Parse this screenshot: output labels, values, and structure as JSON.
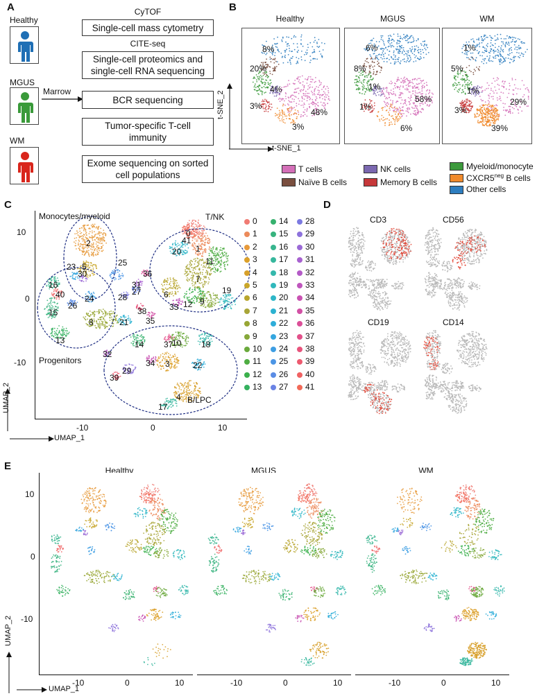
{
  "panels": {
    "A": "A",
    "B": "B",
    "C": "C",
    "D": "D",
    "E": "E"
  },
  "panelA": {
    "groups": [
      "Healthy",
      "MGUS",
      "WM"
    ],
    "arrow_label": "Marrow",
    "headers": [
      "CyTOF",
      "CITE-seq"
    ],
    "boxes": [
      [
        "Single-cell mass cytometry"
      ],
      [
        "Single-cell proteomics and",
        "single-cell RNA sequencing"
      ],
      [
        "BCR sequencing"
      ],
      [
        "Tumor-specific T-cell",
        "immunity"
      ],
      [
        "Exome sequencing on sorted",
        "cell populations"
      ]
    ],
    "person_colors": [
      "#1f6fb5",
      "#3a9a3a",
      "#d9261c"
    ]
  },
  "panelB": {
    "titles": [
      "Healthy",
      "MGUS",
      "WM"
    ],
    "xlabel": "t-SNE_1",
    "ylabel": "t-SNE_2",
    "pct": [
      [
        "8%",
        "20%",
        "4%",
        "3%",
        "48%",
        "3%"
      ],
      [
        "6%",
        "8%",
        "1%",
        "1%",
        "58%",
        "6%"
      ],
      [
        "1%",
        "5%",
        "1%",
        "3%",
        "29%",
        "39%"
      ]
    ],
    "legend": [
      {
        "label": "T cells",
        "color": "#d46fb8"
      },
      {
        "label": "Naïve B cells",
        "color": "#7a4f3f"
      },
      {
        "label": "NK cells",
        "color": "#7b68b0"
      },
      {
        "label": "Memory B cells",
        "color": "#c6383a"
      },
      {
        "label": "Myeloid/monocyte",
        "color": "#3c9a3c"
      },
      {
        "label": "CXCR5",
        "label_sup": "neg",
        "label_tail": " B cells",
        "color": "#f08a2c"
      },
      {
        "label": "Other cells",
        "color": "#2d7dbf"
      }
    ]
  },
  "panelC": {
    "group_labels": [
      "Monocytes/myeloid",
      "T/NK",
      "Progenitors",
      "B/LPC"
    ],
    "xlabel": "UMAP_1",
    "ylabel": "UMAP_2",
    "xticks": [
      "-10",
      "0",
      "10"
    ],
    "yticks": [
      "10",
      "0",
      "-10"
    ],
    "cluster_numbers": [
      "0",
      "41",
      "1",
      "20",
      "11",
      "2",
      "5",
      "25",
      "23",
      "30",
      "36",
      "31",
      "27",
      "28",
      "7",
      "6",
      "12",
      "9",
      "19",
      "33",
      "16",
      "40",
      "26",
      "24",
      "15",
      "8",
      "21",
      "38",
      "35",
      "13",
      "14",
      "37",
      "10",
      "18",
      "32",
      "34",
      "3",
      "22",
      "29",
      "39",
      "4",
      "17"
    ]
  },
  "legendC": {
    "items": [
      {
        "n": "0",
        "c": "#f07b73"
      },
      {
        "n": "1",
        "c": "#ec8a5a"
      },
      {
        "n": "2",
        "c": "#e79a3c"
      },
      {
        "n": "3",
        "c": "#dba02a"
      },
      {
        "n": "4",
        "c": "#d7a02b"
      },
      {
        "n": "5",
        "c": "#c9a62b"
      },
      {
        "n": "6",
        "c": "#b8a52e"
      },
      {
        "n": "7",
        "c": "#a8a537"
      },
      {
        "n": "8",
        "c": "#98a634"
      },
      {
        "n": "9",
        "c": "#86a83a"
      },
      {
        "n": "10",
        "c": "#6aa93c"
      },
      {
        "n": "11",
        "c": "#4ead42"
      },
      {
        "n": "12",
        "c": "#3bb04c"
      },
      {
        "n": "13",
        "c": "#35b15f"
      },
      {
        "n": "14",
        "c": "#36b16e"
      },
      {
        "n": "15",
        "c": "#37b37e"
      },
      {
        "n": "16",
        "c": "#38b58e"
      },
      {
        "n": "17",
        "c": "#37b79d"
      },
      {
        "n": "18",
        "c": "#35b8ac"
      },
      {
        "n": "19",
        "c": "#31b8bc"
      },
      {
        "n": "20",
        "c": "#2eb6c8"
      },
      {
        "n": "21",
        "c": "#2cb2d1"
      },
      {
        "n": "22",
        "c": "#2eadd9"
      },
      {
        "n": "23",
        "c": "#35a6df"
      },
      {
        "n": "24",
        "c": "#3e9ee3"
      },
      {
        "n": "25",
        "c": "#4b95e5"
      },
      {
        "n": "26",
        "c": "#5a8ce5"
      },
      {
        "n": "27",
        "c": "#6a83e4"
      },
      {
        "n": "28",
        "c": "#7c7ae1"
      },
      {
        "n": "29",
        "c": "#8d72dc"
      },
      {
        "n": "30",
        "c": "#9b6ad6"
      },
      {
        "n": "31",
        "c": "#a862d0"
      },
      {
        "n": "32",
        "c": "#b45bc7"
      },
      {
        "n": "33",
        "c": "#bf56bd"
      },
      {
        "n": "34",
        "c": "#c952b2"
      },
      {
        "n": "35",
        "c": "#d250a5"
      },
      {
        "n": "36",
        "c": "#db4f98"
      },
      {
        "n": "37",
        "c": "#e2508a"
      },
      {
        "n": "38",
        "c": "#e8547c"
      },
      {
        "n": "39",
        "c": "#ed5a6f"
      },
      {
        "n": "40",
        "c": "#f06263"
      },
      {
        "n": "41",
        "c": "#f26a58"
      }
    ]
  },
  "panelD": {
    "markers": [
      "CD3",
      "CD56",
      "CD19",
      "CD14"
    ]
  },
  "panelE": {
    "titles": [
      "Healthy",
      "MGUS",
      "WM"
    ],
    "xlabel": "UMAP_1",
    "ylabel": "UMAP_2",
    "xticks": [
      "-10",
      "0",
      "10"
    ],
    "yticks": [
      "10",
      "0",
      "-10"
    ]
  }
}
